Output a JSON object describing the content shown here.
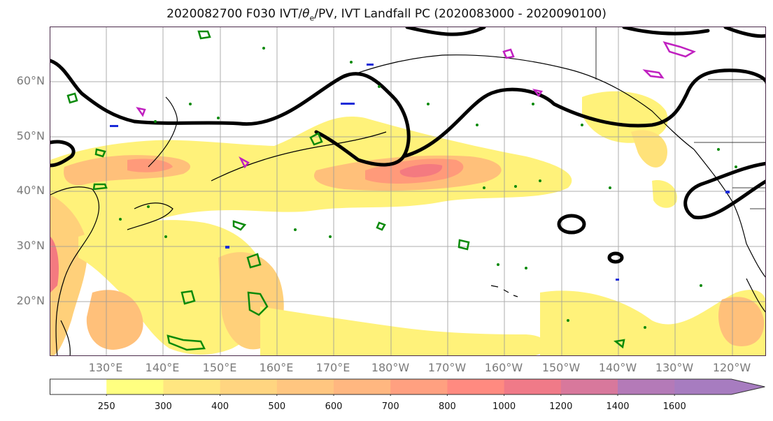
{
  "title": "2020082700 F030 IVT/θe/PV, IVT Landfall PC (2020083000 - 2020090100)",
  "title_parts": {
    "prefix": "2020082700 F030 IVT/",
    "theta": "θ",
    "sub": "e",
    "suffix": "/PV, IVT Landfall PC (2020083000 - 2020090100)"
  },
  "lat_labels": [
    "60°N",
    "50°N",
    "40°N",
    "30°N",
    "20°N"
  ],
  "lon_labels": [
    "130°E",
    "140°E",
    "150°E",
    "160°E",
    "170°E",
    "180°W",
    "170°W",
    "160°W",
    "150°W",
    "140°W",
    "130°W",
    "120°W"
  ],
  "colorbar": {
    "labels": [
      "250",
      "300",
      "400",
      "500",
      "600",
      "700",
      "800",
      "1000",
      "1200",
      "1400",
      "1600"
    ],
    "colors": [
      "#ffffff",
      "#ffff80",
      "#ffe680",
      "#ffd580",
      "#ffc680",
      "#ffb780",
      "#ffa080",
      "#ff8a80",
      "#f07a88",
      "#d8789c",
      "#b47ab8",
      "#a77cc0"
    ]
  },
  "colors": {
    "ivt_light": "#fff27a",
    "ivt_mid": "#ffd07a",
    "ivt_high": "#ff9a7a",
    "ivt_peak": "#f47a80",
    "contour_black": "#000000",
    "contour_green": "#0a8a0a",
    "contour_magenta": "#c020c0",
    "contour_blue": "#1a2bd8",
    "grid": "#999999"
  }
}
